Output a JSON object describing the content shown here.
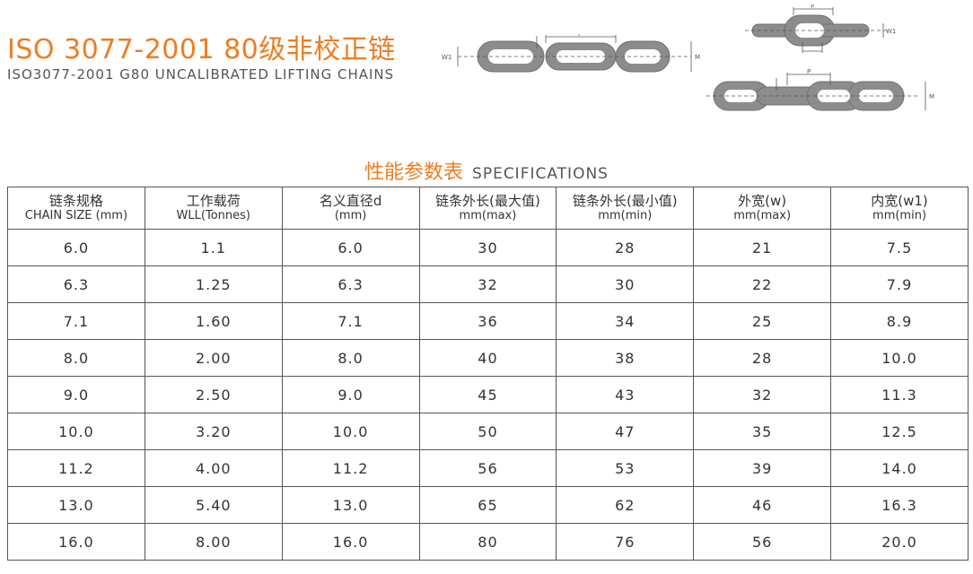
{
  "header": {
    "title_cn": "ISO 3077-2001 80级非校正链",
    "title_en": "ISO3077-2001 G80 UNCALIBRATED LIFTING CHAINS"
  },
  "diagram_labels": {
    "pitch": "P",
    "inner_width": "W1",
    "outer_width": "M"
  },
  "specs": {
    "heading_cn": "性能参数表",
    "heading_en": "SPECIFICATIONS",
    "columns": [
      {
        "cn": "链条规格",
        "en": "CHAIN SIZE (mm)"
      },
      {
        "cn": "工作载荷",
        "en": "WLL(Tonnes)"
      },
      {
        "cn": "名义直径d",
        "en": "(mm)"
      },
      {
        "cn": "链条外长(最大值)",
        "en": "mm(max)"
      },
      {
        "cn": "链条外长(最小值)",
        "en": "mm(min)"
      },
      {
        "cn": "外宽(w)",
        "en": "mm(max)"
      },
      {
        "cn": "内宽(w1)",
        "en": "mm(min)"
      }
    ],
    "rows": [
      [
        "6.0",
        "1.1",
        "6.0",
        "30",
        "28",
        "21",
        "7.5"
      ],
      [
        "6.3",
        "1.25",
        "6.3",
        "32",
        "30",
        "22",
        "7.9"
      ],
      [
        "7.1",
        "1.60",
        "7.1",
        "36",
        "34",
        "25",
        "8.9"
      ],
      [
        "8.0",
        "2.00",
        "8.0",
        "40",
        "38",
        "28",
        "10.0"
      ],
      [
        "9.0",
        "2.50",
        "9.0",
        "45",
        "43",
        "32",
        "11.3"
      ],
      [
        "10.0",
        "3.20",
        "10.0",
        "50",
        "47",
        "35",
        "12.5"
      ],
      [
        "11.2",
        "4.00",
        "11.2",
        "56",
        "53",
        "39",
        "14.0"
      ],
      [
        "13.0",
        "5.40",
        "13.0",
        "65",
        "62",
        "46",
        "16.3"
      ],
      [
        "16.0",
        "8.00",
        "16.0",
        "80",
        "76",
        "56",
        "20.0"
      ]
    ]
  },
  "colors": {
    "accent": "#ec7d22",
    "link": "#8a8a8a"
  }
}
